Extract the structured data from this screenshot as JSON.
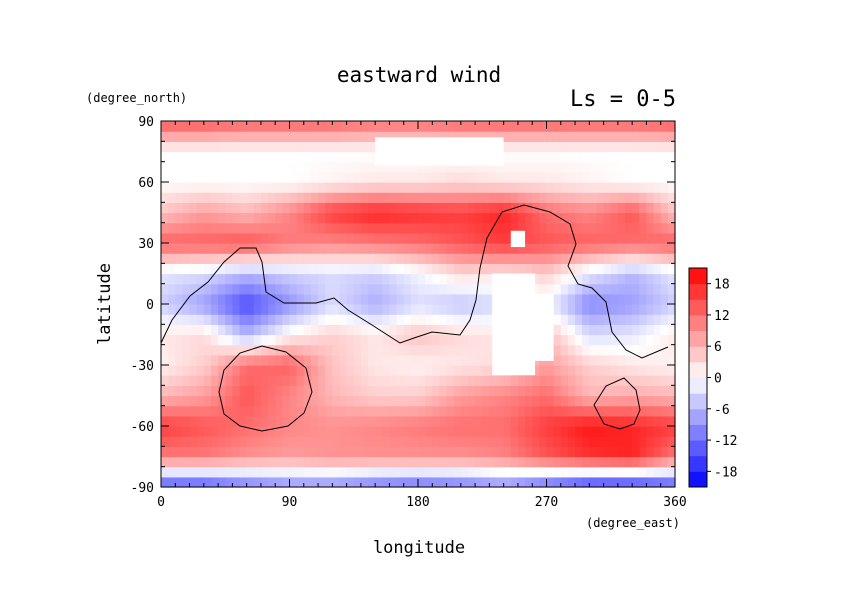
{
  "chart_data": {
    "type": "heatmap",
    "title": "eastward wind",
    "subtitle": "Ls = 0-5",
    "xlabel": "longitude",
    "ylabel": "latitude",
    "x_unit": "(degree_east)",
    "y_unit": "(degree_north)",
    "xlim": [
      0,
      360
    ],
    "ylim": [
      -90,
      90
    ],
    "x_ticks": [
      0,
      90,
      180,
      270,
      360
    ],
    "y_ticks": [
      -90,
      -60,
      -30,
      0,
      30,
      60,
      90
    ],
    "colorbar": {
      "range": [
        -21,
        21
      ],
      "ticks": [
        -18,
        -12,
        -6,
        0,
        6,
        12,
        18
      ],
      "min_color": "#0000ff",
      "mid_color": "#ffffff",
      "max_color": "#ff0000"
    },
    "grid_lon": [
      0,
      30,
      60,
      90,
      120,
      150,
      180,
      210,
      240,
      270,
      300,
      330,
      360
    ],
    "grid_lat": [
      -90,
      -75,
      -60,
      -45,
      -30,
      -15,
      0,
      15,
      30,
      45,
      60,
      75,
      90
    ],
    "values": [
      [
        -15,
        -15,
        -12,
        -10,
        -10,
        -12,
        -13,
        -12,
        -10,
        -14,
        -18,
        -18,
        -15
      ],
      [
        11,
        11,
        9,
        8,
        9,
        9,
        9,
        9,
        10,
        14,
        17,
        18,
        11
      ],
      [
        16,
        14,
        12,
        10,
        9,
        10,
        11,
        12,
        12,
        16,
        19,
        18,
        16
      ],
      [
        6,
        8,
        14,
        10,
        6,
        4,
        4,
        8,
        10,
        12,
        6,
        7,
        6
      ],
      [
        1,
        4,
        12,
        13,
        5,
        2,
        1,
        2,
        3,
        8,
        4,
        2,
        1
      ],
      [
        2,
        3,
        -6,
        1,
        4,
        2,
        5,
        3,
        2,
        6,
        -3,
        -2,
        2
      ],
      [
        -4,
        -8,
        -15,
        -9,
        -3,
        -7,
        -3,
        -5,
        -3,
        -1,
        -10,
        -8,
        -4
      ],
      [
        -2,
        -3,
        -6,
        -4,
        -3,
        -4,
        -1,
        3,
        2,
        4,
        -2,
        -6,
        -2
      ],
      [
        13,
        13,
        14,
        11,
        10,
        11,
        12,
        14,
        16,
        14,
        13,
        12,
        13
      ],
      [
        5,
        8,
        6,
        10,
        16,
        18,
        17,
        16,
        18,
        12,
        10,
        14,
        5
      ],
      [
        0,
        0,
        0,
        0,
        1,
        2,
        2,
        3,
        2,
        2,
        1,
        0,
        0
      ],
      [
        0,
        0,
        0,
        0,
        0,
        0,
        0,
        0,
        0,
        0,
        0,
        0,
        0
      ],
      [
        14,
        14,
        13,
        13,
        13,
        12,
        12,
        13,
        13,
        13,
        13,
        13,
        14
      ]
    ],
    "missing_regions": [
      {
        "lon_range": [
          232,
          262
        ],
        "lat_range": [
          -35,
          15
        ]
      },
      {
        "lon_range": [
          250,
          275
        ],
        "lat_range": [
          -28,
          5
        ]
      },
      {
        "lon_range": [
          245,
          255
        ],
        "lat_range": [
          28,
          36
        ]
      },
      {
        "lon_range": [
          150,
          240
        ],
        "lat_range": [
          68,
          82
        ]
      }
    ]
  }
}
